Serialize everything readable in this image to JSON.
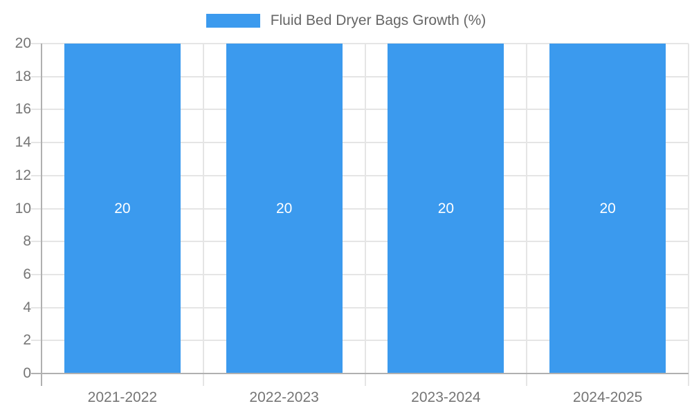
{
  "chart_data": {
    "type": "bar",
    "title": "Fluid Bed Dryer Bags Growth (%)",
    "legend_position": "top",
    "categories": [
      "2021-2022",
      "2022-2023",
      "2023-2024",
      "2024-2025"
    ],
    "series": [
      {
        "name": "Fluid Bed Dryer Bags Growth (%)",
        "values": [
          20,
          20,
          20,
          20
        ],
        "data_labels": [
          "20",
          "20",
          "20",
          "20"
        ]
      }
    ],
    "xlabel": "",
    "ylabel": "",
    "ylim": [
      0,
      20
    ],
    "yticks": [
      0,
      2,
      4,
      6,
      8,
      10,
      12,
      14,
      16,
      18,
      20
    ],
    "grid": true,
    "colors": {
      "bar": "#3b9aee",
      "grid": "#e5e5e5",
      "axis": "#b0b0b0",
      "tick_text": "#757575",
      "legend_text": "#666666",
      "bar_label_text": "#ffffff",
      "background": "#ffffff"
    }
  }
}
